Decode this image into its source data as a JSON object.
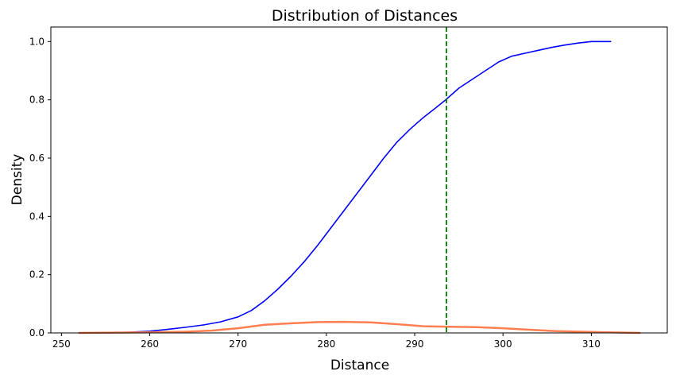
{
  "chart_data": {
    "type": "line",
    "title": "Distribution of Distances",
    "xlabel": "Distance",
    "ylabel": "Density",
    "xlim": [
      248.8,
      318.6
    ],
    "ylim": [
      0,
      1.05
    ],
    "x_ticks": [
      250,
      260,
      270,
      280,
      290,
      300,
      310
    ],
    "y_ticks": [
      0.0,
      0.2,
      0.4,
      0.6,
      0.8,
      1.0
    ],
    "x_tick_labels": [
      "250",
      "260",
      "270",
      "280",
      "290",
      "300",
      "310"
    ],
    "y_tick_labels": [
      "0.0",
      "0.2",
      "0.4",
      "0.6",
      "0.8",
      "1.0"
    ],
    "grid": false,
    "legend": "none",
    "series": [
      {
        "kind": "cumulative",
        "color": "#0000ff",
        "points": [
          [
            255.2,
            0.0
          ],
          [
            258.0,
            0.003
          ],
          [
            260.0,
            0.006
          ],
          [
            262.0,
            0.012
          ],
          [
            264.0,
            0.019
          ],
          [
            266.0,
            0.027
          ],
          [
            268.0,
            0.038
          ],
          [
            270.0,
            0.055
          ],
          [
            271.5,
            0.077
          ],
          [
            273.0,
            0.11
          ],
          [
            274.5,
            0.15
          ],
          [
            276.0,
            0.195
          ],
          [
            277.5,
            0.245
          ],
          [
            279.0,
            0.3
          ],
          [
            280.5,
            0.36
          ],
          [
            282.0,
            0.42
          ],
          [
            283.5,
            0.48
          ],
          [
            285.0,
            0.54
          ],
          [
            286.5,
            0.6
          ],
          [
            288.0,
            0.655
          ],
          [
            289.5,
            0.7
          ],
          [
            291.0,
            0.74
          ],
          [
            292.5,
            0.775
          ],
          [
            293.5,
            0.8
          ],
          [
            295.0,
            0.84
          ],
          [
            296.5,
            0.87
          ],
          [
            298.0,
            0.9
          ],
          [
            299.5,
            0.93
          ],
          [
            301.0,
            0.95
          ],
          [
            302.5,
            0.96
          ],
          [
            304.0,
            0.97
          ],
          [
            305.5,
            0.98
          ],
          [
            307.0,
            0.988
          ],
          [
            308.5,
            0.995
          ],
          [
            310.0,
            1.0
          ],
          [
            312.2,
            1.0
          ]
        ]
      },
      {
        "kind": "density",
        "color": "#ff7f50",
        "points": [
          [
            252.0,
            0.0
          ],
          [
            256.0,
            0.001
          ],
          [
            260.0,
            0.002
          ],
          [
            264.0,
            0.004
          ],
          [
            267.0,
            0.008
          ],
          [
            270.0,
            0.016
          ],
          [
            273.0,
            0.028
          ],
          [
            276.0,
            0.033
          ],
          [
            279.0,
            0.037
          ],
          [
            282.0,
            0.038
          ],
          [
            285.0,
            0.036
          ],
          [
            288.0,
            0.03
          ],
          [
            291.0,
            0.023
          ],
          [
            294.0,
            0.021
          ],
          [
            297.0,
            0.02
          ],
          [
            300.0,
            0.016
          ],
          [
            303.0,
            0.011
          ],
          [
            306.0,
            0.006
          ],
          [
            309.0,
            0.004
          ],
          [
            312.0,
            0.002
          ],
          [
            315.5,
            0.0
          ]
        ]
      }
    ],
    "reference_line": {
      "orientation": "vertical",
      "x": 293.6,
      "color": "#008000",
      "style": "dashed"
    }
  }
}
